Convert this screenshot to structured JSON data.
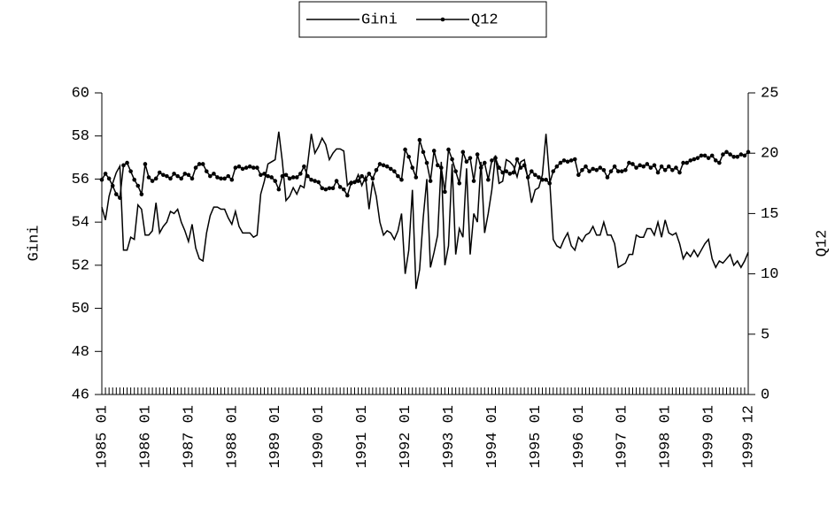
{
  "chart_data": {
    "type": "line",
    "y_label": "Gini",
    "y2_label": "Q12",
    "legend": "top",
    "categories": [
      "1985 01",
      null,
      null,
      null,
      null,
      null,
      null,
      null,
      null,
      null,
      null,
      null,
      "1986 01",
      null,
      null,
      null,
      null,
      null,
      null,
      null,
      null,
      null,
      null,
      null,
      "1987 01",
      null,
      null,
      null,
      null,
      null,
      null,
      null,
      null,
      null,
      null,
      null,
      "1988 01",
      null,
      null,
      null,
      null,
      null,
      null,
      null,
      null,
      null,
      null,
      null,
      "1989 01",
      null,
      null,
      null,
      null,
      null,
      null,
      null,
      null,
      null,
      null,
      null,
      "1990 01",
      null,
      null,
      null,
      null,
      null,
      null,
      null,
      null,
      null,
      null,
      null,
      "1991 01",
      null,
      null,
      null,
      null,
      null,
      null,
      null,
      null,
      null,
      null,
      null,
      "1992 01",
      null,
      null,
      null,
      null,
      null,
      null,
      null,
      null,
      null,
      null,
      null,
      "1993 01",
      null,
      null,
      null,
      null,
      null,
      null,
      null,
      null,
      null,
      null,
      null,
      "1994 01",
      null,
      null,
      null,
      null,
      null,
      null,
      null,
      null,
      null,
      null,
      null,
      "1995 01",
      null,
      null,
      null,
      null,
      null,
      null,
      null,
      null,
      null,
      null,
      null,
      "1996 01",
      null,
      null,
      null,
      null,
      null,
      null,
      null,
      null,
      null,
      null,
      null,
      "1997 01",
      null,
      null,
      null,
      null,
      null,
      null,
      null,
      null,
      null,
      null,
      null,
      "1998 01",
      null,
      null,
      null,
      null,
      null,
      null,
      null,
      null,
      null,
      null,
      null,
      "1999 01",
      null,
      null,
      null,
      null,
      null,
      null,
      null,
      null,
      null,
      null,
      "1999 12"
    ],
    "ylim": [
      46,
      60
    ],
    "yticks": [
      46,
      48,
      50,
      52,
      54,
      56,
      58,
      60
    ],
    "y2lim": [
      0,
      25
    ],
    "y2ticks": [
      0,
      5,
      10,
      15,
      20,
      25
    ],
    "series": [
      {
        "name": "Gini",
        "color": "#000000",
        "marker": false,
        "values": [
          54.7,
          54.1,
          55.2,
          55.8,
          56.3,
          56.6,
          52.7,
          52.7,
          53.3,
          53.2,
          54.8,
          54.6,
          53.4,
          53.4,
          53.6,
          54.9,
          53.5,
          53.8,
          54.0,
          54.5,
          54.4,
          54.6,
          54.0,
          53.6,
          53.1,
          53.9,
          52.8,
          52.3,
          52.2,
          53.5,
          54.3,
          54.7,
          54.7,
          54.6,
          54.6,
          54.2,
          53.9,
          54.5,
          53.8,
          53.5,
          53.5,
          53.5,
          53.3,
          53.4,
          55.3,
          55.9,
          56.7,
          56.8,
          56.9,
          58.2,
          56.8,
          55.0,
          55.2,
          55.6,
          55.3,
          55.7,
          55.6,
          56.7,
          58.1,
          57.2,
          57.5,
          57.9,
          57.6,
          56.9,
          57.2,
          57.4,
          57.4,
          57.3,
          55.7,
          55.9,
          55.8,
          56.2,
          55.7,
          56.1,
          54.6,
          55.9,
          55.2,
          54.0,
          53.4,
          53.6,
          53.5,
          53.2,
          53.6,
          54.4,
          51.6,
          52.7,
          55.5,
          50.9,
          51.8,
          54.2,
          56.0,
          51.9,
          52.6,
          53.4,
          56.8,
          52.0,
          52.9,
          56.7,
          52.5,
          53.7,
          53.3,
          56.5,
          52.5,
          54.4,
          54.0,
          56.8,
          53.5,
          54.4,
          55.5,
          57.1,
          55.8,
          55.9,
          56.9,
          56.8,
          56.6,
          56.1,
          56.8,
          56.9,
          56.0,
          54.9,
          55.5,
          55.6,
          56.2,
          58.1,
          56.0,
          53.2,
          52.9,
          52.8,
          53.2,
          53.5,
          52.9,
          52.7,
          53.3,
          53.1,
          53.4,
          53.5,
          53.8,
          53.4,
          53.4,
          54.0,
          53.4,
          53.4,
          53.0,
          51.9,
          52.0,
          52.1,
          52.5,
          52.5,
          53.4,
          53.3,
          53.3,
          53.7,
          53.7,
          53.4,
          54.0,
          53.3,
          54.1,
          53.5,
          53.4,
          53.5,
          53.0,
          52.3,
          52.6,
          52.4,
          52.7,
          52.4,
          52.7,
          53.0,
          53.2,
          52.3,
          51.9,
          52.2,
          52.1,
          52.3,
          52.5,
          52.0,
          52.2,
          51.9,
          52.2,
          52.6
        ]
      },
      {
        "name": "Q12",
        "color": "#000000",
        "marker": true,
        "axis": "y2",
        "values": [
          17.8,
          18.3,
          17.9,
          17.3,
          16.6,
          16.3,
          19.0,
          19.2,
          18.5,
          17.8,
          17.3,
          16.6,
          19.1,
          18.0,
          17.7,
          17.9,
          18.4,
          18.2,
          18.1,
          17.9,
          18.3,
          18.1,
          17.9,
          18.3,
          18.2,
          17.9,
          18.8,
          19.1,
          19.1,
          18.5,
          18.1,
          18.3,
          18.0,
          17.9,
          17.9,
          18.1,
          17.8,
          18.8,
          18.9,
          18.7,
          18.8,
          18.9,
          18.8,
          18.8,
          18.2,
          18.3,
          18.1,
          18.0,
          17.7,
          17.0,
          18.1,
          18.2,
          17.9,
          18.0,
          18.0,
          18.3,
          18.9,
          18.1,
          17.8,
          17.7,
          17.6,
          17.1,
          17.0,
          17.1,
          17.1,
          17.7,
          17.2,
          17.0,
          16.5,
          17.5,
          17.6,
          17.7,
          18.1,
          17.8,
          18.3,
          17.9,
          18.6,
          19.1,
          19.0,
          18.9,
          18.7,
          18.5,
          18.1,
          17.8,
          20.3,
          19.7,
          18.8,
          18.0,
          21.1,
          20.1,
          19.2,
          17.7,
          20.2,
          19.0,
          18.8,
          16.8,
          20.3,
          19.5,
          18.5,
          17.5,
          20.1,
          19.3,
          19.6,
          17.7,
          19.9,
          18.8,
          19.2,
          17.8,
          19.4,
          19.6,
          18.8,
          18.4,
          18.5,
          18.3,
          18.4,
          19.5,
          18.8,
          19.0,
          18.0,
          18.5,
          18.2,
          18.0,
          17.8,
          17.8,
          17.5,
          18.5,
          18.9,
          19.2,
          19.4,
          19.3,
          19.4,
          19.5,
          18.2,
          18.6,
          18.9,
          18.5,
          18.7,
          18.6,
          18.8,
          18.6,
          18.0,
          18.5,
          18.9,
          18.5,
          18.5,
          18.6,
          19.2,
          19.1,
          18.8,
          19.0,
          18.9,
          19.1,
          18.8,
          19.0,
          18.4,
          18.9,
          18.6,
          18.9,
          18.6,
          18.8,
          18.4,
          19.2,
          19.2,
          19.4,
          19.5,
          19.6,
          19.8,
          19.8,
          19.6,
          19.8,
          19.4,
          19.2,
          19.9,
          20.1,
          19.9,
          19.7,
          19.7,
          19.9,
          19.8,
          20.1
        ]
      }
    ]
  }
}
